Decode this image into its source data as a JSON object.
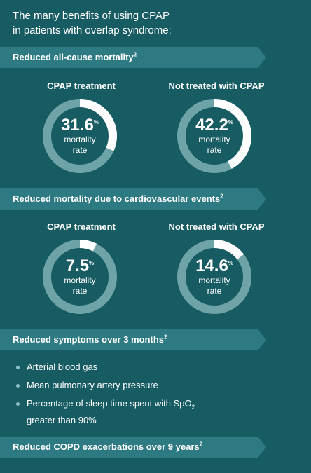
{
  "intro": {
    "line1": "The many benefits of using CPAP",
    "line2": "in patients with overlap syndrome:"
  },
  "sections": [
    {
      "title": "Reduced all-cause mortality",
      "sup": "2",
      "panels": [
        {
          "heading": "CPAP treatment",
          "value": "31.6",
          "unit": "%",
          "label1": "mortality",
          "label2": "rate",
          "fraction": 0.316
        },
        {
          "heading": "Not treated with CPAP",
          "value": "42.2",
          "unit": "%",
          "label1": "mortality",
          "label2": "rate",
          "fraction": 0.422
        }
      ]
    },
    {
      "title": "Reduced mortality due to cardiovascular events",
      "sup": "2",
      "panels": [
        {
          "heading": "CPAP treatment",
          "value": "7.5",
          "unit": "%",
          "label1": "mortality",
          "label2": "rate",
          "fraction": 0.075
        },
        {
          "heading": "Not treated with CPAP",
          "value": "14.6",
          "unit": "%",
          "label1": "mortality",
          "label2": "rate",
          "fraction": 0.146
        }
      ]
    },
    {
      "title": "Reduced symptoms over 3 months",
      "sup": "2",
      "bullets": [
        "Arterial blood gas",
        "Mean pulmonary artery pressure",
        "Percentage of sleep time spent with SpO",
        "greater than 90%"
      ],
      "bullet3_sub": "2"
    },
    {
      "title": "Reduced COPD exacerbations over 9 years",
      "sup": "2"
    }
  ],
  "colors": {
    "background": "#175b63",
    "banner": "#2e7a83",
    "ring_track": "#6ea3a8",
    "ring_fill": "#ffffff",
    "bullet": "#8fc1c7"
  }
}
